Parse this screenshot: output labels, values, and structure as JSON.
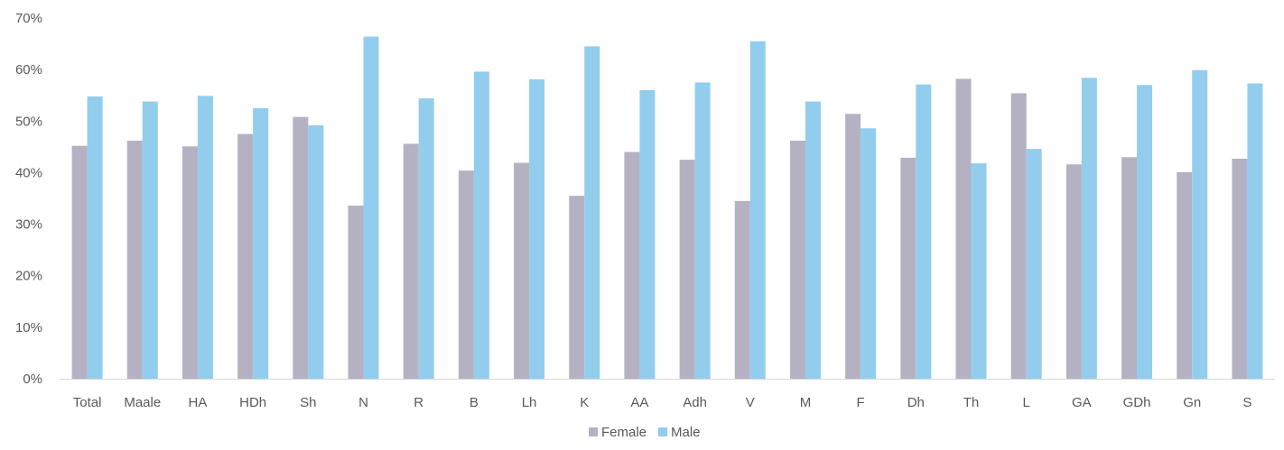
{
  "chart_data": {
    "type": "bar",
    "title": "",
    "xlabel": "",
    "ylabel": "",
    "ylim": [
      0,
      70
    ],
    "y_ticks": [
      0,
      10,
      20,
      30,
      40,
      50,
      60,
      70
    ],
    "y_tick_format": "percent",
    "grid": false,
    "legend_position": "bottom",
    "categories": [
      "Total",
      "Maale",
      "HA",
      "HDh",
      "Sh",
      "N",
      "R",
      "B",
      "Lh",
      "K",
      "AA",
      "Adh",
      "V",
      "M",
      "F",
      "Dh",
      "Th",
      "L",
      "GA",
      "GDh",
      "Gn",
      "S"
    ],
    "series": [
      {
        "name": "Female",
        "color": "#b4b2c2",
        "values": [
          45.2,
          46.2,
          45.1,
          47.5,
          50.8,
          33.6,
          45.6,
          40.4,
          41.9,
          35.5,
          44.0,
          42.5,
          34.5,
          46.2,
          51.4,
          42.9,
          58.2,
          55.4,
          41.6,
          43.0,
          40.1,
          42.7
        ]
      },
      {
        "name": "Male",
        "color": "#92cdee",
        "values": [
          54.8,
          53.8,
          54.9,
          52.5,
          49.2,
          66.4,
          54.4,
          59.6,
          58.1,
          64.5,
          56.0,
          57.5,
          65.5,
          53.8,
          48.6,
          57.1,
          41.8,
          44.6,
          58.4,
          57.0,
          59.9,
          57.3
        ]
      }
    ]
  },
  "colors": {
    "axis": "#d9d9d9",
    "text": "#595959"
  }
}
